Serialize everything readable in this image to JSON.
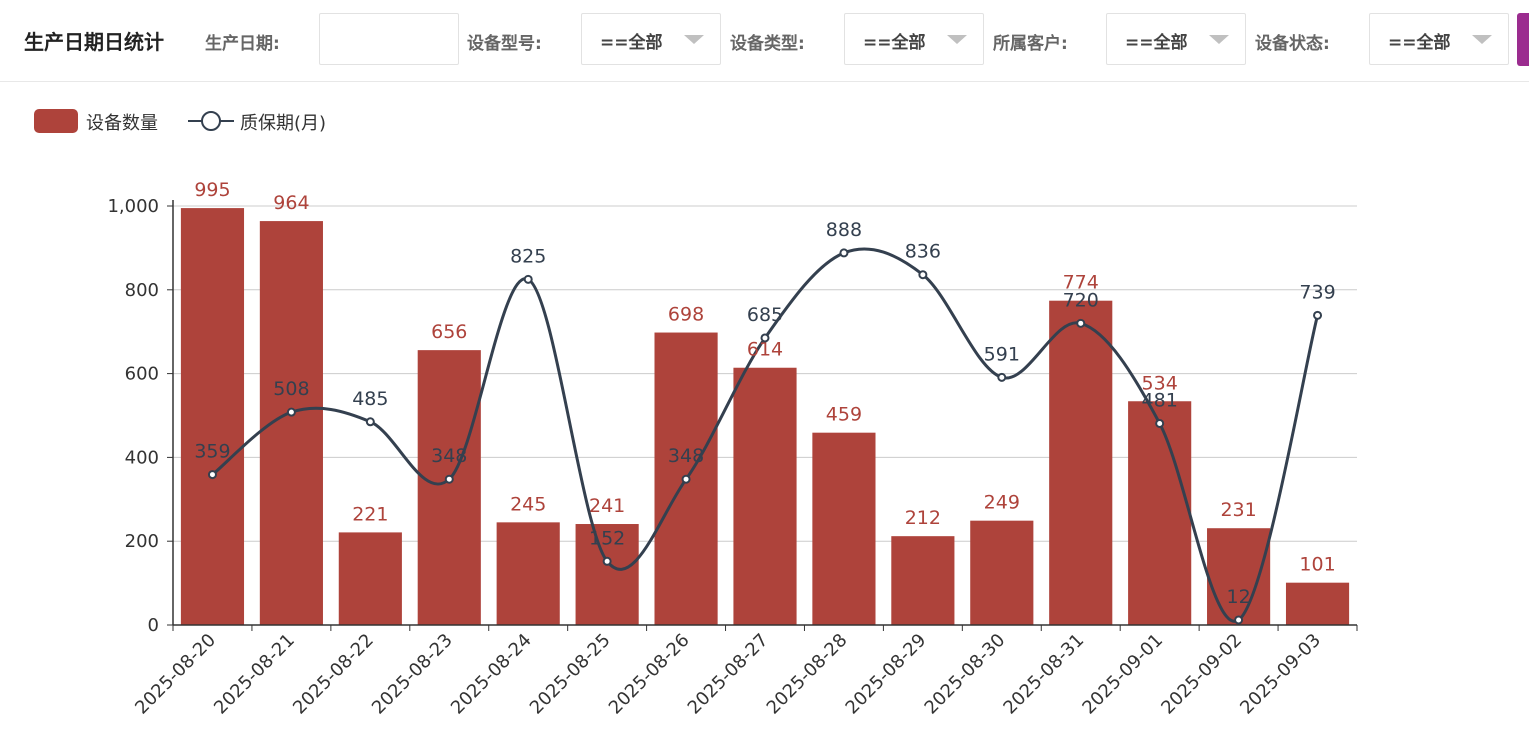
{
  "header": {
    "title": "生产日期日统计",
    "filters": [
      {
        "label": "生产日期:",
        "value": "",
        "type": "date"
      },
      {
        "label": "设备型号:",
        "value": "==全部",
        "type": "select"
      },
      {
        "label": "设备类型:",
        "value": "==全部",
        "type": "select"
      },
      {
        "label": "所属客户:",
        "value": "==全部",
        "type": "select"
      },
      {
        "label": "设备状态:",
        "value": "==全部",
        "type": "select"
      }
    ]
  },
  "colors": {
    "bar": "#ae433b",
    "line": "#34404f",
    "axis": "#333333",
    "grid": "#cccccc",
    "submit": "#9b2c8f"
  },
  "chart_data": {
    "type": "bar",
    "categories": [
      "2025-08-20",
      "2025-08-21",
      "2025-08-22",
      "2025-08-23",
      "2025-08-24",
      "2025-08-25",
      "2025-08-26",
      "2025-08-27",
      "2025-08-28",
      "2025-08-29",
      "2025-08-30",
      "2025-08-31",
      "2025-09-01",
      "2025-09-02",
      "2025-09-03"
    ],
    "series": [
      {
        "name": "设备数量",
        "type": "bar",
        "values": [
          995,
          964,
          221,
          656,
          245,
          241,
          698,
          614,
          459,
          212,
          249,
          774,
          534,
          231,
          101
        ]
      },
      {
        "name": "质保期(月)",
        "type": "line",
        "smooth": true,
        "values": [
          359,
          508,
          485,
          348,
          825,
          152,
          348,
          685,
          888,
          836,
          591,
          720,
          481,
          12,
          739
        ]
      }
    ],
    "yticks": [
      "0",
      "200",
      "400",
      "600",
      "800",
      "1,000"
    ],
    "ylim": [
      0,
      1000
    ],
    "grid": "horizontal",
    "legend": "top-left",
    "data_labels": true
  }
}
